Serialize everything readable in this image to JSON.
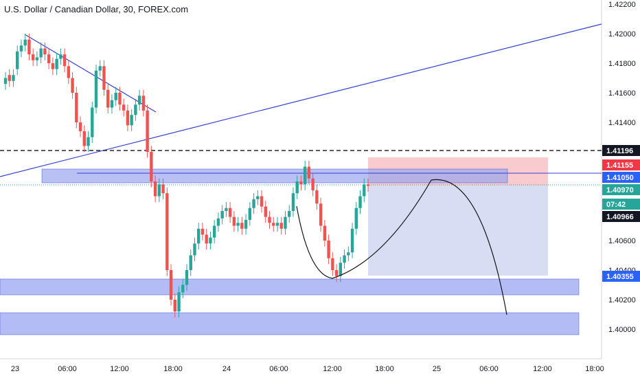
{
  "title": "U.S. Dollar / Canadian Dollar, 30, FOREX.com",
  "colors": {
    "up": "#26a69a",
    "down": "#ef5350",
    "zone": "#9aa5f0",
    "zone_border": "#3f51d6",
    "trend": "#3140d8",
    "stop": "#f7b9bd",
    "target": "#c9d3ef"
  },
  "chart_data": {
    "type": "candlestick",
    "title": "U.S. Dollar / Canadian Dollar, 30, FOREX.com",
    "ylim": [
      1.399,
      1.4225
    ],
    "y_ticks": [
      "1.42200",
      "1.42000",
      "1.41800",
      "1.41600",
      "1.41400",
      "1.40600",
      "1.40400",
      "1.40200",
      "1.40000"
    ],
    "x_ticks": [
      "23",
      "06:00",
      "12:00",
      "18:00",
      "24",
      "06:00",
      "12:00",
      "18:00",
      "25",
      "06:00",
      "12:00",
      "18:00"
    ],
    "price_badges": [
      {
        "label": "1.41196",
        "value": 1.41196,
        "style": "dark"
      },
      {
        "label": "1.41155",
        "value": 1.41155,
        "style": "red"
      },
      {
        "label": "1.41050",
        "value": 1.4105,
        "style": "blue"
      },
      {
        "label": "1.40970",
        "value": 1.4097,
        "style": "green"
      },
      {
        "label": "07:42",
        "value": 1.40936,
        "style": "green"
      },
      {
        "label": "1.40966",
        "value": 1.4089,
        "style": "dark"
      },
      {
        "label": "1.40355",
        "value": 1.40355,
        "style": "blue"
      }
    ],
    "levels": [
      {
        "name": "resistance",
        "value": 1.41196,
        "style": "dashed"
      },
      {
        "name": "current",
        "value": 1.4097,
        "style": "dotted"
      }
    ],
    "candles_close": [
      1.417,
      1.4168,
      1.4172,
      1.4188,
      1.4192,
      1.4196,
      1.4186,
      1.4182,
      1.4184,
      1.419,
      1.4186,
      1.418,
      1.4176,
      1.4183,
      1.4186,
      1.4178,
      1.417,
      1.416,
      1.414,
      1.4134,
      1.4124,
      1.413,
      1.415,
      1.4175,
      1.4178,
      1.4162,
      1.415,
      1.4155,
      1.416,
      1.4152,
      1.4148,
      1.4138,
      1.4145,
      1.4152,
      1.4158,
      1.4148,
      1.412,
      1.41,
      1.409,
      1.4098,
      1.4092,
      1.404,
      1.402,
      1.4012,
      1.4025,
      1.403,
      1.404,
      1.405,
      1.4058,
      1.4068,
      1.4064,
      1.4058,
      1.4062,
      1.407,
      1.4075,
      1.408,
      1.4082,
      1.4076,
      1.407,
      1.4072,
      1.4068,
      1.4074,
      1.4082,
      1.4088,
      1.409,
      1.4083,
      1.4076,
      1.4072,
      1.407,
      1.4072,
      1.4068,
      1.4076,
      1.408,
      1.4092,
      1.41,
      1.4098,
      1.411,
      1.4102,
      1.4094,
      1.4085,
      1.407,
      1.406,
      1.4048,
      1.404,
      1.4036,
      1.4045,
      1.405,
      1.4052,
      1.4068,
      1.4082,
      1.409,
      1.4098,
      1.4097
    ],
    "candles_open": [
      1.4166,
      1.4172,
      1.4168,
      1.4176,
      1.4188,
      1.4192,
      1.4196,
      1.4186,
      1.4182,
      1.4184,
      1.419,
      1.4186,
      1.418,
      1.4176,
      1.4183,
      1.4186,
      1.4178,
      1.417,
      1.416,
      1.414,
      1.4134,
      1.4124,
      1.413,
      1.415,
      1.4175,
      1.4178,
      1.4162,
      1.415,
      1.4155,
      1.416,
      1.4152,
      1.4148,
      1.4138,
      1.4145,
      1.4152,
      1.4158,
      1.4148,
      1.412,
      1.41,
      1.409,
      1.4098,
      1.4092,
      1.404,
      1.402,
      1.4012,
      1.4025,
      1.403,
      1.404,
      1.405,
      1.4058,
      1.4068,
      1.4064,
      1.4058,
      1.4062,
      1.407,
      1.4075,
      1.408,
      1.4082,
      1.4076,
      1.407,
      1.4072,
      1.4068,
      1.4074,
      1.4082,
      1.4088,
      1.409,
      1.4083,
      1.4076,
      1.4072,
      1.407,
      1.4072,
      1.4068,
      1.4076,
      1.408,
      1.4092,
      1.41,
      1.4098,
      1.411,
      1.4102,
      1.4094,
      1.4085,
      1.407,
      1.406,
      1.4048,
      1.404,
      1.4036,
      1.4045,
      1.405,
      1.4052,
      1.4068,
      1.4082,
      1.409,
      1.4098
    ]
  }
}
